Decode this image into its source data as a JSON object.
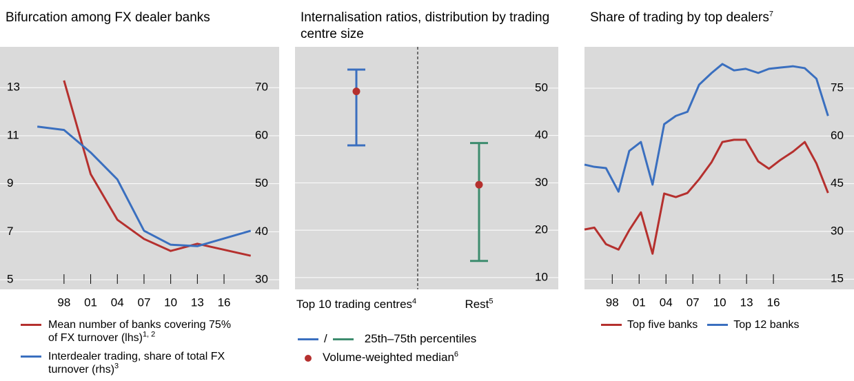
{
  "chart_data": [
    {
      "type": "line",
      "title": "Bifurcation among FX dealer banks",
      "xlim": [
        1990.8,
        2022.2
      ],
      "xticks": [
        {
          "value": 1998,
          "label": "98"
        },
        {
          "value": 2001,
          "label": "01"
        },
        {
          "value": 2004,
          "label": "04"
        },
        {
          "value": 2007,
          "label": "07"
        },
        {
          "value": 2010,
          "label": "10"
        },
        {
          "value": 2013,
          "label": "13"
        },
        {
          "value": 2016,
          "label": "16"
        }
      ],
      "ylim": [
        4.6,
        14.7
      ],
      "yticks": [
        5,
        7,
        9,
        11,
        13
      ],
      "y2lim": [
        28,
        78.5
      ],
      "y2ticks": [
        30,
        40,
        50,
        60,
        70
      ],
      "grid": true,
      "series": [
        {
          "name": "Mean number of banks covering 75% of FX turnover (lhs)",
          "note": "1, 2",
          "color": "#b5302e",
          "x": [
            1998,
            2001,
            2004,
            2007,
            2010,
            2013,
            2019
          ],
          "values": [
            13.3,
            9.4,
            7.5,
            6.7,
            6.2,
            6.5,
            6.0
          ]
        },
        {
          "name": "Interdealer trading, share of total FX turnover (rhs)",
          "note": "3",
          "color": "#3a6fbf",
          "axis": "y2",
          "x": [
            1995,
            1998,
            2001,
            2004,
            2007,
            2010,
            2013,
            2019
          ],
          "values": [
            61.9,
            61.2,
            56.5,
            50.9,
            40.2,
            37.3,
            37.0,
            40.2
          ]
        }
      ]
    },
    {
      "type": "errorbar",
      "title": "Internalisation ratios, distribution by trading centre size",
      "categories": [
        "Top 10 trading centres",
        "Rest"
      ],
      "category_notes": [
        "4",
        "5"
      ],
      "ylim": [
        7.5,
        58.7
      ],
      "yticks": [
        10,
        20,
        30,
        40,
        50
      ],
      "y_axis_position": "right",
      "grid": true,
      "low": [
        37.9,
        13.5
      ],
      "high": [
        53.9,
        38.4
      ],
      "median": [
        49.3,
        29.6
      ],
      "range_colors": [
        "#3a6fbf",
        "#3d8c6e"
      ],
      "range_separator": "/",
      "range_name": "25th–75th percentiles",
      "median_name": "Volume-weighted median",
      "median_note": "6",
      "median_color": "#b5302e"
    },
    {
      "type": "line",
      "title": "Share of trading by top dealers",
      "title_note": "7",
      "xlim": [
        1994.9,
        2025
      ],
      "xticks": [
        {
          "value": 1998,
          "label": "98"
        },
        {
          "value": 2001,
          "label": "01"
        },
        {
          "value": 2004,
          "label": "04"
        },
        {
          "value": 2007,
          "label": "07"
        },
        {
          "value": 2010,
          "label": "10"
        },
        {
          "value": 2013,
          "label": "13"
        },
        {
          "value": 2016,
          "label": "16"
        }
      ],
      "ylim": [
        11.8,
        88
      ],
      "yticks": [
        15,
        30,
        45,
        60,
        75
      ],
      "y_axis_position": "right",
      "grid": true,
      "x": [
        1994.9,
        1996.0,
        1997.3,
        1998.7,
        1999.9,
        2001.2,
        2002.5,
        2003.8,
        2005.1,
        2006.4,
        2007.7,
        2009.1,
        2010.3,
        2011.6,
        2012.9,
        2014.3,
        2015.5,
        2016.8,
        2018.2,
        2019.5,
        2020.8,
        2022.1
      ],
      "series": [
        {
          "name": "Top five banks",
          "color": "#b5302e",
          "values": [
            30.6,
            31.2,
            26.0,
            24.3,
            30.4,
            36.0,
            23.0,
            41.9,
            40.8,
            42.1,
            46.4,
            51.8,
            58.1,
            58.8,
            58.8,
            52.0,
            49.7,
            52.5,
            55.1,
            58.1,
            51.4,
            42.1
          ]
        },
        {
          "name": "Top 12 banks",
          "color": "#3a6fbf",
          "values": [
            51.0,
            50.3,
            49.9,
            42.5,
            55.3,
            58.1,
            44.7,
            63.7,
            66.3,
            67.6,
            76.1,
            79.8,
            82.6,
            80.6,
            81.1,
            79.8,
            81.1,
            81.5,
            81.9,
            81.3,
            78.0,
            66.3
          ]
        }
      ]
    }
  ]
}
